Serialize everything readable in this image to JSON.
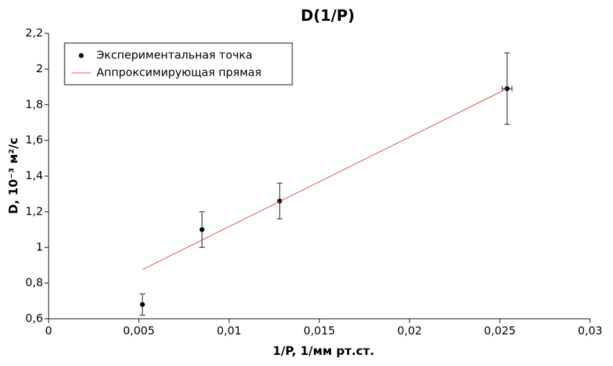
{
  "chart_data": {
    "type": "scatter",
    "title": "D(1/P)",
    "x_label": "1/P, 1/мм рт.ст.",
    "y_label": "D, 10⁻³ м²/с",
    "xlim": [
      0,
      0.03
    ],
    "ylim": [
      0.6,
      2.2
    ],
    "xticks": [
      0,
      {
        "value": 0.005,
        "label": "0,005"
      },
      {
        "value": 0.01,
        "label": "0,01"
      },
      {
        "value": 0.015,
        "label": "0,015"
      },
      {
        "value": 0.02,
        "label": "0,02"
      },
      {
        "value": 0.025,
        "label": "0,025"
      },
      {
        "value": 0.03,
        "label": "0,03"
      }
    ],
    "yticks": [
      {
        "value": 0.6,
        "label": "0,6"
      },
      {
        "value": 0.8,
        "label": "0,8"
      },
      1,
      {
        "value": 1.2,
        "label": "1,2"
      },
      {
        "value": 1.4,
        "label": "1,4"
      },
      {
        "value": 1.6,
        "label": "1,6"
      },
      {
        "value": 1.8,
        "label": "1,8"
      },
      2,
      {
        "value": 2.2,
        "label": "2,2"
      }
    ],
    "grid": false,
    "legend": "top-left",
    "series": [
      {
        "name": "Экспериментальная точка",
        "color": "#000000",
        "kind": "points",
        "x": [
          0.0052,
          0.0085,
          0.0128,
          0.0254
        ],
        "values": [
          0.68,
          1.1,
          1.26,
          1.89
        ],
        "errors": [
          0.06,
          0.1,
          0.1,
          0.2
        ],
        "xerrors": [
          null,
          null,
          null,
          0.00027
        ]
      },
      {
        "name": "Аппроксимирующая прямая",
        "color": "#e0443a",
        "kind": "line",
        "x": [
          0.0052,
          0.0254
        ],
        "values": [
          0.876,
          1.89
        ]
      }
    ]
  }
}
